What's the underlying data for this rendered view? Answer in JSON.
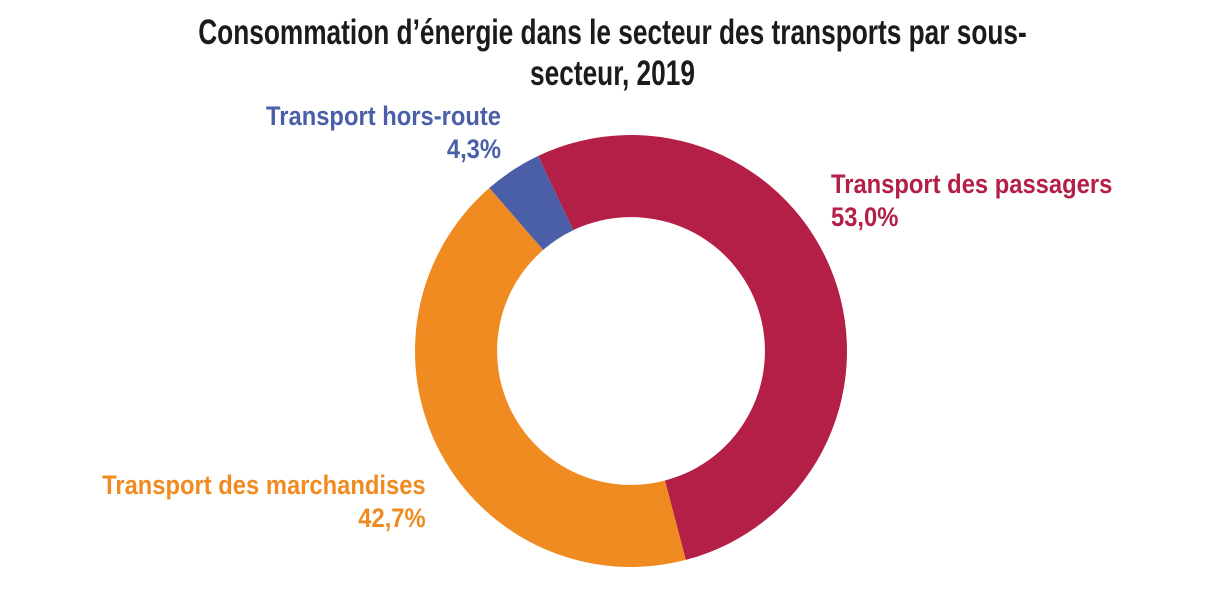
{
  "title": {
    "line1": "Consommation d’énergie dans le secteur des transports par sous-",
    "line2": "secteur, 2019",
    "color": "#1b1b1b"
  },
  "chart_data": {
    "type": "pie",
    "subtype": "donut",
    "title": "Consommation d’énergie dans le secteur des transports par sous-secteur, 2019",
    "unit": "%",
    "total": 100.0,
    "start_angle_deg": -25.5,
    "inner_radius_ratio": 0.62,
    "legend_position": "labels-adjacent-to-slices",
    "slices": [
      {
        "label": "Transport des passagers",
        "value": 53.0,
        "display": "53,0%",
        "color": "#B31F46"
      },
      {
        "label": "Transport des marchandises",
        "value": 42.7,
        "display": "42,7%",
        "color": "#F08B22"
      },
      {
        "label": "Transport hors-route",
        "value": 4.3,
        "display": "4,3%",
        "color": "#4A5FA8"
      }
    ]
  }
}
